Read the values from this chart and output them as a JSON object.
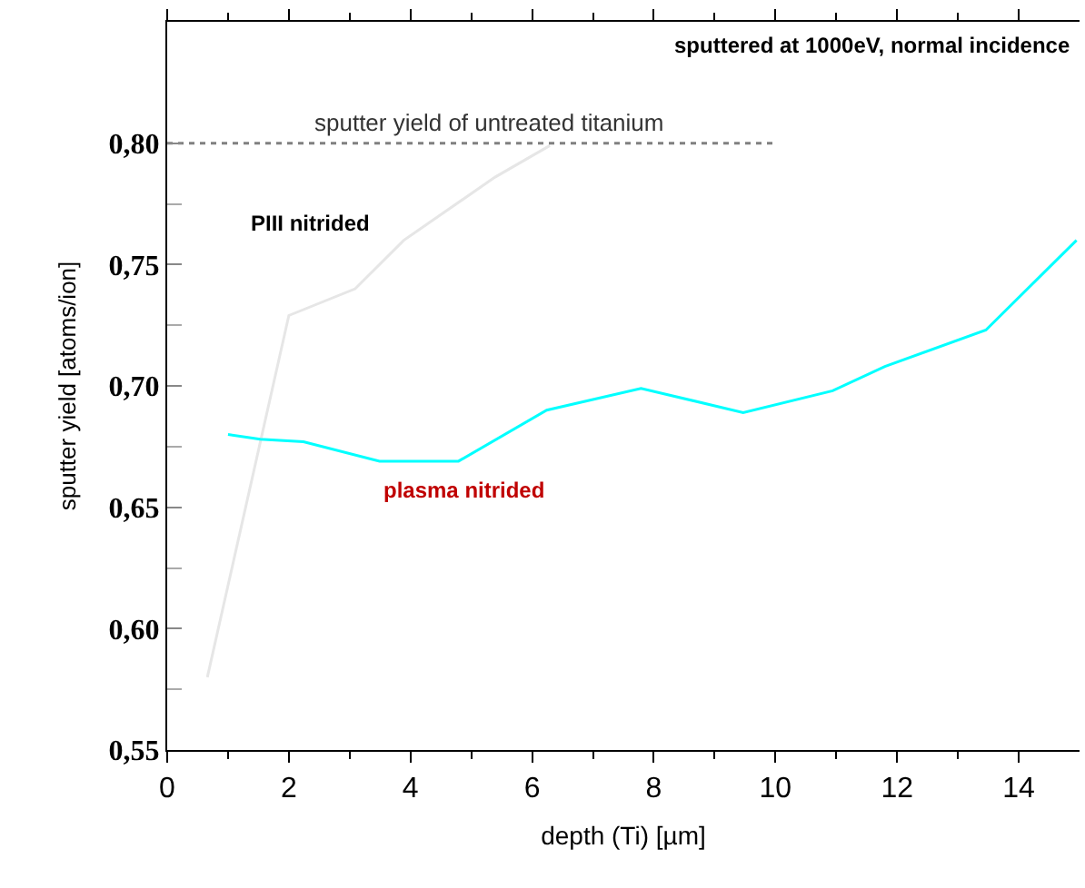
{
  "chart_data": {
    "type": "line",
    "xlabel": "depth (Ti) [µm]",
    "ylabel": "sputter yield [atoms/ion]",
    "xlim": [
      0,
      15
    ],
    "xticks": [
      0,
      2,
      4,
      6,
      8,
      10,
      12,
      14
    ],
    "ylim": [
      0.55,
      0.85
    ],
    "yticks": [
      {
        "value": 0.55,
        "label": "0,55"
      },
      {
        "value": 0.6,
        "label": "0,60"
      },
      {
        "value": 0.65,
        "label": "0,65"
      },
      {
        "value": 0.7,
        "label": "0,70"
      },
      {
        "value": 0.75,
        "label": "0,75"
      },
      {
        "value": 0.8,
        "label": "0,80"
      }
    ],
    "grid": false,
    "legend": false,
    "marker": "none",
    "series": [
      {
        "name": "PIII nitrided",
        "color": "#e6e6e6",
        "x": [
          0.66,
          2.0,
          3.09,
          3.89,
          5.39,
          6.29
        ],
        "values": [
          0.58,
          0.729,
          0.74,
          0.76,
          0.786,
          0.799
        ]
      },
      {
        "name": "plasma nitrided",
        "color": "#00ffff",
        "x": [
          1.0,
          1.53,
          2.24,
          3.49,
          4.79,
          6.24,
          7.79,
          9.47,
          10.94,
          11.8,
          13.46,
          14.95
        ],
        "values": [
          0.68,
          0.678,
          0.677,
          0.669,
          0.669,
          0.69,
          0.699,
          0.689,
          0.698,
          0.708,
          0.723,
          0.76
        ]
      },
      {
        "color": "#808080",
        "line_style": "dotted",
        "x": [
          0,
          10
        ],
        "values": [
          0.8,
          0.8
        ]
      }
    ],
    "annotations": [
      "sputtered at 1000eV, normal incidence",
      {
        "text": "sputter yield of untreated titanium",
        "x": 5.3,
        "y": 0.8
      }
    ]
  }
}
